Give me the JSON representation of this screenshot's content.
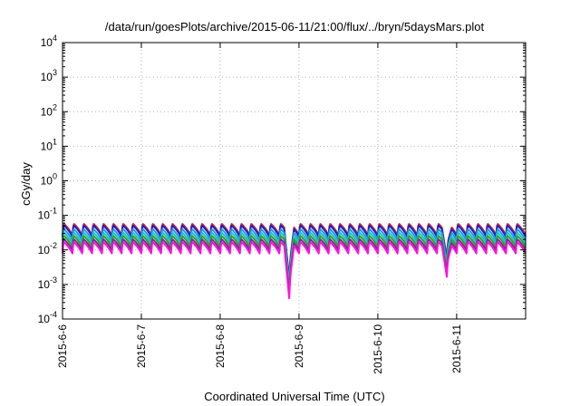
{
  "chart_data": {
    "type": "line",
    "title": "/data/run/goesPlots/archive/2015-06-11/21:00/flux/../bryn/5daysMars.plot",
    "xlabel": "Coordinated Universal Time (UTC)",
    "ylabel": "cGy/day",
    "yscale": "log",
    "ylim": [
      0.0001,
      10000
    ],
    "xlim": [
      "2015-06-06 00:00",
      "2015-06-11 21:00"
    ],
    "grid": true,
    "legend": "none",
    "x_ticks": [
      "2015-6-6",
      "2015-6-7",
      "2015-6-8",
      "2015-6-9",
      "2015-6-10",
      "2015-6-11"
    ],
    "y_ticks": [
      {
        "base": "10",
        "exp": "-4"
      },
      {
        "base": "10",
        "exp": "-3"
      },
      {
        "base": "10",
        "exp": "-2"
      },
      {
        "base": "10",
        "exp": "-1"
      },
      {
        "base": "10",
        "exp": "0"
      },
      {
        "base": "10",
        "exp": "1"
      },
      {
        "base": "10",
        "exp": "2"
      },
      {
        "base": "10",
        "exp": "3"
      },
      {
        "base": "10",
        "exp": "4"
      }
    ],
    "pattern": {
      "period_hours": 3,
      "peak": 0.052,
      "trough": 0.024,
      "dips": [
        {
          "time": "2015-06-08 21:00",
          "value": 0.0012
        },
        {
          "time": "2015-06-10 21:00",
          "value": 0.005
        }
      ]
    },
    "series": [
      {
        "color": "#d62728",
        "factor": 1.12
      },
      {
        "color": "#1f1fd0",
        "factor": 1.0
      },
      {
        "color": "#1e9fd8",
        "factor": 0.78
      },
      {
        "color": "#20c2c8",
        "factor": 0.62
      },
      {
        "color": "#2ca02c",
        "factor": 0.5
      },
      {
        "color": "#7b2d8e",
        "factor": 0.4
      },
      {
        "color": "#ff10e0",
        "factor": 0.33
      }
    ]
  }
}
